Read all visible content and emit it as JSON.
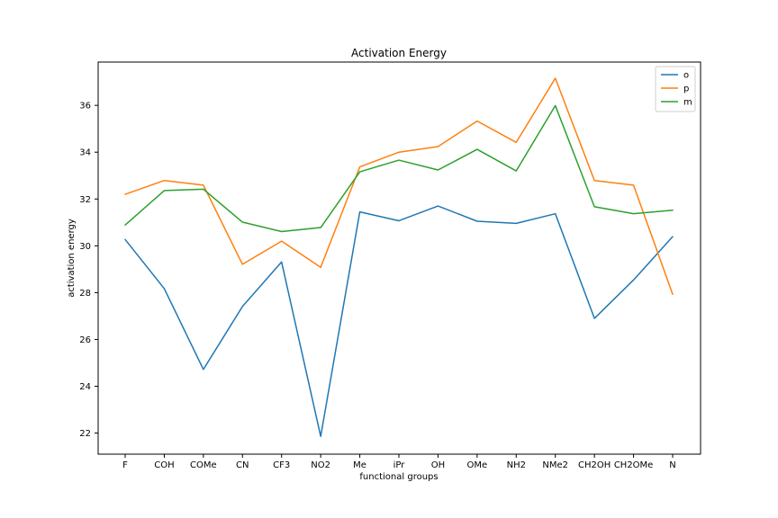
{
  "chart_data": {
    "type": "line",
    "title": "Activation Energy",
    "xlabel": "functional groups",
    "ylabel": "activation energy",
    "categories": [
      "F",
      "COH",
      "COMe",
      "CN",
      "CF3",
      "NO2",
      "Me",
      "iPr",
      "OH",
      "OMe",
      "NH2",
      "NMe2",
      "CH2OH",
      "CH2OMe",
      "N"
    ],
    "yticks": [
      22,
      24,
      26,
      28,
      30,
      32,
      34,
      36
    ],
    "ylim": [
      21.1,
      37.85
    ],
    "grid": false,
    "legend_position": "top-right",
    "series": [
      {
        "name": "o",
        "color": "#1f77b4",
        "values": [
          30.27,
          28.17,
          24.72,
          27.41,
          29.31,
          21.86,
          31.45,
          31.07,
          31.7,
          31.05,
          30.96,
          31.37,
          26.9,
          28.54,
          30.39
        ]
      },
      {
        "name": "p",
        "color": "#ff7f0e",
        "values": [
          32.2,
          32.79,
          32.59,
          29.21,
          30.2,
          29.08,
          33.37,
          34.0,
          34.24,
          35.33,
          34.42,
          37.16,
          32.79,
          32.59,
          27.93
        ]
      },
      {
        "name": "m",
        "color": "#2ca02c",
        "values": [
          30.89,
          32.36,
          32.42,
          31.01,
          30.61,
          30.78,
          33.16,
          33.66,
          33.24,
          34.12,
          33.2,
          35.99,
          31.67,
          31.37,
          31.52
        ]
      }
    ]
  }
}
